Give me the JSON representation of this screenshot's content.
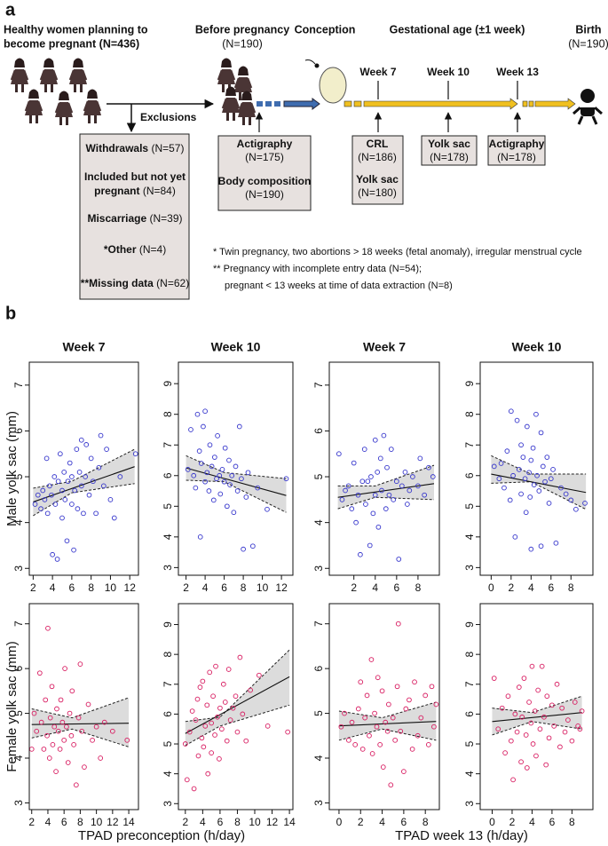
{
  "diagram": {
    "label": "a",
    "start": [
      "Healthy women planning to",
      "become pregnant (N=436)"
    ],
    "stages": [
      {
        "title": "Before pregnancy",
        "n": "(N=190)"
      },
      {
        "title": "Conception"
      },
      {
        "title": "Gestational age (±1 week)"
      },
      {
        "title": "Birth",
        "n": "(N=190)"
      }
    ],
    "weeks": [
      "Week 7",
      "Week 10",
      "Week 13"
    ],
    "exclusions": {
      "title": "Exclusions",
      "items": [
        {
          "label": "Withdrawals",
          "n": "(N=57)"
        },
        {
          "label": "Included but not yet",
          "label2": "pregnant",
          "n": "(N=84)"
        },
        {
          "label": "Miscarriage",
          "n": "(N=39)"
        },
        {
          "label": "*Other",
          "n": "(N=4)"
        },
        {
          "label": "**Missing data",
          "n": "(N=62)"
        }
      ]
    },
    "measures": [
      [
        {
          "label": "Actigraphy",
          "n": "(N=175)"
        },
        {
          "label": "Body composition",
          "n": "(N=190)"
        }
      ],
      [
        {
          "label": "CRL",
          "n": "(N=186)"
        },
        {
          "label": "Yolk sac",
          "n": "(N=180)"
        }
      ],
      [
        {
          "label": "Yolk sac",
          "n": "(N=178)"
        }
      ],
      [
        {
          "label": "Actigraphy",
          "n": "(N=178)"
        }
      ]
    ],
    "footnotes": [
      "* Twin pregnancy, two abortions > 18 weeks (fetal anomaly), irregular menstrual cycle",
      "** Pregnancy with incomplete entry data (N=54);",
      "pregnant < 13 weeks at time of data extraction (N=8)"
    ]
  },
  "panel_b": {
    "label": "b",
    "row_labels": [
      "Male yolk sac (mm)",
      "Female yolk sac (mm)"
    ],
    "x_labels": [
      "TPAD preconception (h/day)",
      "TPAD week 13 (h/day)"
    ]
  },
  "chart_data": [
    {
      "type": "scatter",
      "title": "Week 7",
      "color": "#3535cc",
      "x": [
        2.2,
        2.5,
        2.8,
        3,
        3.2,
        3.4,
        3.5,
        3.7,
        3.9,
        4,
        4.2,
        4.3,
        4.5,
        4.6,
        4.8,
        5,
        5,
        5.2,
        5.3,
        5.5,
        5.6,
        5.8,
        6,
        6,
        6.2,
        6.3,
        6.5,
        6.6,
        6.8,
        7,
        7,
        7.2,
        7.4,
        7.5,
        7.8,
        8,
        8.2,
        8.5,
        8.8,
        9,
        9.3,
        9.6,
        10,
        10.4,
        11,
        12.6
      ],
      "values": [
        4.4,
        4.6,
        4.3,
        4.7,
        4.5,
        5.4,
        4.2,
        4.8,
        4.6,
        3.3,
        5.0,
        4.4,
        3.2,
        4.9,
        5.5,
        4.1,
        4.7,
        5.1,
        4.5,
        3.6,
        4.9,
        5.3,
        4.4,
        5.0,
        3.4,
        4.7,
        5.6,
        4.3,
        5.1,
        4.8,
        5.8,
        4.2,
        5.0,
        5.7,
        4.6,
        5.4,
        4.9,
        4.2,
        5.2,
        5.9,
        4.8,
        5.6,
        4.5,
        4.1,
        5.0,
        5.5
      ],
      "xlim": [
        1.6,
        12.9
      ],
      "ylim": [
        2.85,
        7.5
      ],
      "xticks": [
        2,
        4,
        6,
        8,
        10,
        12
      ],
      "yticks": [
        3,
        4,
        5,
        6,
        7
      ],
      "fit": {
        "x": [
          2,
          12.5
        ],
        "values": [
          4.45,
          5.22
        ]
      },
      "band": {
        "x": [
          2,
          6,
          12.5
        ],
        "lower": [
          4.15,
          4.65,
          4.85
        ],
        "upper": [
          4.75,
          4.9,
          5.6
        ]
      }
    },
    {
      "type": "scatter",
      "title": "Week 10",
      "color": "#3535cc",
      "x": [
        2.2,
        2.5,
        2.8,
        3,
        3.2,
        3.4,
        3.5,
        3.6,
        3.8,
        4,
        4,
        4.2,
        4.4,
        4.5,
        4.7,
        4.9,
        5,
        5.2,
        5.3,
        5.5,
        5.6,
        5.8,
        6,
        6.1,
        6.3,
        6.5,
        6.6,
        6.8,
        7,
        7.2,
        7.4,
        7.6,
        7.8,
        8,
        8.3,
        8.5,
        9,
        9.5,
        10.5,
        12.5
      ],
      "values": [
        6.2,
        7.5,
        6.0,
        5.6,
        8.0,
        6.8,
        4.0,
        6.4,
        7.6,
        5.8,
        8.1,
        6.1,
        5.5,
        7.0,
        6.3,
        5.2,
        6.6,
        5.9,
        7.3,
        6.0,
        5.4,
        6.2,
        5.8,
        6.9,
        5.0,
        6.5,
        5.7,
        6.0,
        4.8,
        6.3,
        5.5,
        7.6,
        5.9,
        3.6,
        5.3,
        6.1,
        3.7,
        5.6,
        4.9,
        5.9
      ],
      "xlim": [
        1.2,
        13.2
      ],
      "ylim": [
        2.75,
        9.7
      ],
      "xticks": [
        2,
        4,
        6,
        8,
        10,
        12
      ],
      "yticks": [
        3,
        4,
        5,
        6,
        7,
        8,
        9
      ],
      "fit": {
        "x": [
          2,
          12.5
        ],
        "values": [
          6.25,
          5.35
        ]
      },
      "band": {
        "x": [
          2,
          6,
          12.5
        ],
        "lower": [
          5.85,
          5.8,
          4.8
        ],
        "upper": [
          6.65,
          6.1,
          5.9
        ]
      }
    },
    {
      "type": "scatter",
      "title": "Week 7",
      "color": "#3535cc",
      "x": [
        0.6,
        0.9,
        1.2,
        1.5,
        1.8,
        2,
        2.2,
        2.4,
        2.6,
        2.8,
        3,
        3.1,
        3.3,
        3.5,
        3.6,
        3.8,
        4,
        4,
        4.2,
        4.3,
        4.5,
        4.6,
        4.8,
        5,
        5.1,
        5.3,
        5.5,
        5.7,
        6,
        6.2,
        6.5,
        6.8,
        7,
        7.2,
        7.5,
        8,
        8.2,
        8.6,
        9,
        9.4
      ],
      "values": [
        5.5,
        4.5,
        4.7,
        4.8,
        4.3,
        5.3,
        4.0,
        4.6,
        3.3,
        4.9,
        5.6,
        4.4,
        4.9,
        3.5,
        5.0,
        4.2,
        5.8,
        4.6,
        5.1,
        3.9,
        5.4,
        4.7,
        5.9,
        4.3,
        5.2,
        4.6,
        5.6,
        4.5,
        4.9,
        3.2,
        4.8,
        5.1,
        4.4,
        4.7,
        5.0,
        4.8,
        5.4,
        4.6,
        5.2,
        5.0
      ],
      "xlim": [
        -0.3,
        10
      ],
      "ylim": [
        2.85,
        7.5
      ],
      "xticks": [
        2,
        4,
        6,
        8
      ],
      "yticks": [
        3,
        4,
        5,
        6,
        7
      ],
      "fit": {
        "x": [
          0.5,
          9.5
        ],
        "values": [
          4.55,
          4.85
        ]
      },
      "band": {
        "x": [
          0.5,
          4,
          9.5
        ],
        "lower": [
          4.3,
          4.55,
          4.5
        ],
        "upper": [
          4.8,
          4.8,
          5.25
        ]
      }
    },
    {
      "type": "scatter",
      "title": "Week 10",
      "color": "#3535cc",
      "x": [
        0.3,
        0.8,
        1,
        1.3,
        1.6,
        1.9,
        2,
        2.2,
        2.4,
        2.6,
        2.8,
        3,
        3,
        3.2,
        3.4,
        3.5,
        3.6,
        3.8,
        3.9,
        4,
        4,
        4.2,
        4.3,
        4.5,
        4.6,
        4.8,
        5,
        5,
        5.2,
        5.4,
        5.6,
        5.8,
        6,
        6.2,
        6.5,
        7,
        7.5,
        8,
        8.5,
        9.4
      ],
      "values": [
        6.3,
        5.9,
        6.4,
        5.6,
        6.8,
        5.2,
        8.1,
        6.0,
        4.0,
        7.8,
        6.2,
        5.4,
        7.0,
        6.6,
        5.9,
        4.8,
        7.6,
        6.1,
        5.3,
        6.5,
        3.6,
        6.9,
        5.7,
        8.0,
        6.0,
        5.5,
        7.4,
        3.7,
        6.3,
        5.8,
        6.6,
        5.1,
        5.9,
        6.2,
        3.8,
        5.6,
        5.4,
        5.2,
        4.9,
        5.1
      ],
      "xlim": [
        -1.1,
        10.2
      ],
      "ylim": [
        2.75,
        9.7
      ],
      "xticks": [
        0,
        2,
        4,
        6,
        8
      ],
      "yticks": [
        3,
        4,
        5,
        6,
        7,
        8,
        9
      ],
      "fit": {
        "x": [
          0,
          9.5
        ],
        "values": [
          6.05,
          5.45
        ]
      },
      "band": {
        "x": [
          0,
          4,
          9.5
        ],
        "lower": [
          5.75,
          5.8,
          4.9
        ],
        "upper": [
          6.65,
          6.05,
          6.05
        ]
      }
    },
    {
      "type": "scatter",
      "color": "#d81b60",
      "x": [
        2,
        2.3,
        2.6,
        3,
        3.2,
        3.5,
        3.7,
        3.9,
        4,
        4.2,
        4.3,
        4.5,
        4.6,
        4.8,
        5,
        5.1,
        5.3,
        5.5,
        5.6,
        5.8,
        6,
        6.1,
        6.3,
        6.5,
        6.7,
        6.9,
        7,
        7.2,
        7.5,
        7.8,
        8,
        8.2,
        8.5,
        9,
        9.5,
        10,
        10.5,
        11,
        12,
        13.8
      ],
      "values": [
        4.2,
        5.0,
        4.6,
        5.9,
        4.8,
        4.2,
        5.3,
        4.5,
        6.9,
        4.0,
        4.9,
        5.6,
        4.3,
        4.7,
        3.7,
        5.1,
        4.6,
        4.2,
        5.3,
        4.8,
        4.4,
        6.0,
        4.7,
        3.9,
        5.0,
        4.5,
        5.5,
        4.3,
        3.4,
        4.9,
        6.1,
        4.6,
        3.8,
        5.2,
        4.4,
        4.7,
        4.0,
        4.8,
        4.6,
        4.4
      ],
      "xlim": [
        1.7,
        15.2
      ],
      "ylim": [
        2.85,
        7.45
      ],
      "xticks": [
        2,
        4,
        6,
        8,
        10,
        12,
        14
      ],
      "yticks": [
        3,
        4,
        5,
        6,
        7
      ],
      "fit": {
        "x": [
          2,
          14
        ],
        "values": [
          4.75,
          4.78
        ]
      },
      "band": {
        "x": [
          2,
          7,
          14
        ],
        "lower": [
          4.45,
          4.65,
          4.25
        ],
        "upper": [
          5.1,
          4.9,
          5.35
        ]
      }
    },
    {
      "type": "scatter",
      "color": "#d81b60",
      "x": [
        2,
        2.2,
        2.5,
        2.8,
        3,
        3.2,
        3.4,
        3.5,
        3.7,
        3.9,
        4,
        4.1,
        4.3,
        4.5,
        4.6,
        4.8,
        5,
        5,
        5.2,
        5.4,
        5.5,
        5.7,
        5.9,
        6,
        6.2,
        6.4,
        6.6,
        6.8,
        7,
        7.2,
        7.5,
        7.8,
        8,
        8.3,
        8.6,
        9,
        9.5,
        10.5,
        11.5,
        13.8
      ],
      "values": [
        5.0,
        3.8,
        5.4,
        6.1,
        3.5,
        5.8,
        6.5,
        4.6,
        6.9,
        5.2,
        7.1,
        4.9,
        5.6,
        6.3,
        4.0,
        7.4,
        5.7,
        4.7,
        6.6,
        5.3,
        7.6,
        5.9,
        4.5,
        6.2,
        5.5,
        7.0,
        6.4,
        5.1,
        7.5,
        5.8,
        6.2,
        6.6,
        5.4,
        7.9,
        6.0,
        5.1,
        6.8,
        7.3,
        5.6,
        5.4
      ],
      "xlim": [
        1.2,
        14.4
      ],
      "ylim": [
        2.8,
        9.7
      ],
      "xticks": [
        2,
        4,
        6,
        8,
        10,
        12,
        14
      ],
      "yticks": [
        3,
        4,
        5,
        6,
        7,
        8,
        9
      ],
      "fit": {
        "x": [
          2,
          14
        ],
        "values": [
          5.35,
          7.25
        ]
      },
      "band": {
        "x": [
          2,
          6,
          14
        ],
        "lower": [
          4.95,
          5.6,
          6.3
        ],
        "upper": [
          5.75,
          5.9,
          8.15
        ]
      }
    },
    {
      "type": "scatter",
      "color": "#d81b60",
      "x": [
        0.2,
        0.5,
        0.9,
        1.2,
        1.5,
        1.8,
        2,
        2.2,
        2.4,
        2.6,
        2.8,
        3,
        3.1,
        3.3,
        3.5,
        3.6,
        3.8,
        4,
        4.1,
        4.3,
        4.5,
        4.6,
        4.8,
        5,
        5.2,
        5.4,
        5.5,
        5.7,
        6,
        6.2,
        6.5,
        6.8,
        7,
        7.3,
        7.6,
        8,
        8.3,
        8.6,
        8.8,
        9
      ],
      "values": [
        4.7,
        5.0,
        4.4,
        4.8,
        4.3,
        5.1,
        5.7,
        4.2,
        4.9,
        5.4,
        4.5,
        6.2,
        4.1,
        5.0,
        4.7,
        5.8,
        4.3,
        5.5,
        3.8,
        4.8,
        4.6,
        5.2,
        3.4,
        4.9,
        4.4,
        5.6,
        7.0,
        4.6,
        3.7,
        5.1,
        5.3,
        4.2,
        5.7,
        4.5,
        4.9,
        5.4,
        4.3,
        5.6,
        4.7,
        5.2
      ],
      "xlim": [
        -0.9,
        9.3
      ],
      "ylim": [
        2.85,
        7.45
      ],
      "xticks": [
        0,
        2,
        4,
        6,
        8
      ],
      "yticks": [
        3,
        4,
        5,
        6,
        7
      ],
      "fit": {
        "x": [
          0,
          9
        ],
        "values": [
          4.72,
          4.82
        ]
      },
      "band": {
        "x": [
          0,
          4,
          9
        ],
        "lower": [
          4.4,
          4.65,
          4.4
        ],
        "upper": [
          5.05,
          4.9,
          5.25
        ]
      }
    },
    {
      "type": "scatter",
      "color": "#d81b60",
      "x": [
        0.2,
        0.6,
        1,
        1.3,
        1.6,
        1.9,
        2.1,
        2.3,
        2.5,
        2.7,
        2.9,
        3,
        3.2,
        3.4,
        3.5,
        3.7,
        3.9,
        4,
        4.1,
        4.3,
        4.4,
        4.6,
        4.8,
        5,
        5.2,
        5.4,
        5.5,
        5.7,
        6,
        6.2,
        6.5,
        6.8,
        7,
        7.3,
        7.6,
        8,
        8.3,
        8.6,
        8.8,
        9
      ],
      "values": [
        7.2,
        5.5,
        6.2,
        4.7,
        6.6,
        5.1,
        3.8,
        6.0,
        5.4,
        6.9,
        4.4,
        5.9,
        7.2,
        5.3,
        4.2,
        6.4,
        5.7,
        7.6,
        5.0,
        6.1,
        4.6,
        6.8,
        5.5,
        7.6,
        5.9,
        4.3,
        6.6,
        5.2,
        6.3,
        5.6,
        7.0,
        4.9,
        6.2,
        5.4,
        5.8,
        5.1,
        6.4,
        5.6,
        5.5,
        6.1
      ],
      "xlim": [
        -1.2,
        10.1
      ],
      "ylim": [
        2.8,
        9.7
      ],
      "xticks": [
        0,
        2,
        4,
        6,
        8
      ],
      "yticks": [
        3,
        4,
        5,
        6,
        7,
        8,
        9
      ],
      "fit": {
        "x": [
          0,
          9
        ],
        "values": [
          5.75,
          6.05
        ]
      },
      "band": {
        "x": [
          0,
          4,
          9
        ],
        "lower": [
          5.3,
          5.75,
          5.5
        ],
        "upper": [
          6.2,
          6.05,
          6.6
        ]
      }
    }
  ]
}
